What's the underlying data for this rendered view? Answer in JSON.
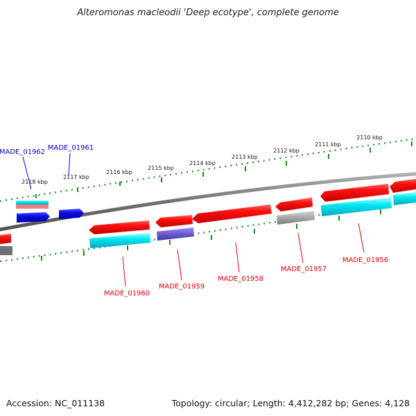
{
  "title": "Alteromonas macleodii 'Deep ecotype', complete genome",
  "footer": {
    "accession": "Accession: NC_011138",
    "summary": "Topology: circular; Length: 4,412,282 bp; Genes: 4,128"
  },
  "ticks": {
    "unit": "kbp",
    "labels": [
      "2118 kbp",
      "2117 kbp",
      "2116 kbp",
      "2115 kbp",
      "2114 kbp",
      "2113 kbp",
      "2112 kbp",
      "2111 kbp",
      "2110 kbp"
    ]
  },
  "genes": [
    {
      "name": "MADE_01962",
      "strand": "forward",
      "color": "#0000cc"
    },
    {
      "name": "MADE_01961",
      "strand": "forward",
      "color": "#0000cc"
    },
    {
      "name": "MADE_01960",
      "strand": "reverse",
      "color": "#e00000"
    },
    {
      "name": "MADE_01959",
      "strand": "reverse",
      "color": "#e00000"
    },
    {
      "name": "MADE_01958",
      "strand": "reverse",
      "color": "#e00000"
    },
    {
      "name": "MADE_01957",
      "strand": "reverse",
      "color": "#e00000"
    },
    {
      "name": "MADE_01956",
      "strand": "reverse",
      "color": "#e00000"
    }
  ],
  "colors": {
    "forward_gene": "#0a0ae6",
    "reverse_gene": "#e00000",
    "backbone": "#808080",
    "tick": "#1a8a1a",
    "cyan_feature": "#00e5ee",
    "purple_feature": "#6a5acd",
    "grey_feature": "#a0a0a0"
  }
}
